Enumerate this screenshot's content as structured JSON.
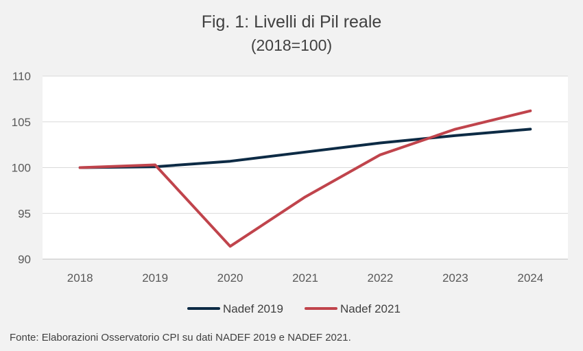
{
  "chart_data": {
    "type": "line",
    "title": "Fig. 1: Livelli di Pil reale",
    "subtitle": "(2018=100)",
    "x": [
      "2018",
      "2019",
      "2020",
      "2021",
      "2022",
      "2023",
      "2024"
    ],
    "ylim": [
      90,
      110
    ],
    "yticks": [
      90,
      95,
      100,
      105,
      110
    ],
    "grid": true,
    "legend_position": "bottom",
    "series": [
      {
        "name": "Nadef 2019",
        "color": "#0d2b45",
        "values": [
          100,
          100.1,
          100.7,
          101.7,
          102.7,
          103.5,
          104.2
        ]
      },
      {
        "name": "Nadef 2021",
        "color": "#c0444c",
        "values": [
          100,
          100.3,
          91.4,
          96.8,
          101.4,
          104.2,
          106.2
        ]
      }
    ]
  },
  "source_note": "Fonte: Elaborazioni Osservatorio CPI su dati NADEF 2019 e NADEF 2021."
}
